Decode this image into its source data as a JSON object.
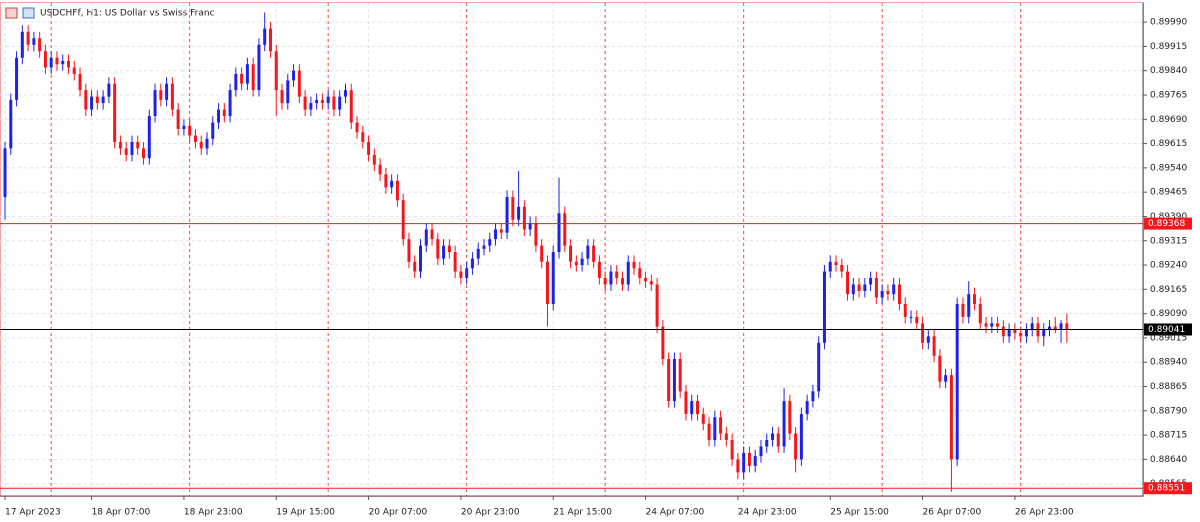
{
  "chart_data": {
    "type": "candlestick",
    "title": "USDCHFf, H1:  US Dollar vs Swiss Franc",
    "up_color": "#1e22e6",
    "down_color": "#f5161c",
    "ylim": [
      0.88527,
      0.90049
    ],
    "yticks": [
      {
        "value": 0.8999,
        "label": "0.89990"
      },
      0.89915,
      {
        "value": 0.8984,
        "label": "0.89840"
      },
      0.89765,
      {
        "value": 0.8969,
        "label": "0.89690"
      },
      0.89615,
      {
        "value": 0.8954,
        "label": "0.89540"
      },
      0.89465,
      {
        "value": 0.8939,
        "label": "0.89390"
      },
      0.89315,
      {
        "value": 0.8924,
        "label": "0.89240"
      },
      0.89165,
      {
        "value": 0.8909,
        "label": "0.89090"
      },
      0.89015,
      {
        "value": 0.8894,
        "label": "0.88940"
      },
      0.88865,
      {
        "value": 0.8879,
        "label": "0.88790"
      },
      0.88715,
      {
        "value": 0.8864,
        "label": "0.88640"
      },
      0.88565
    ],
    "xlim": [
      -0.87,
      197.2
    ],
    "xticks": [
      {
        "value": 0,
        "label": "17 Apr 2023"
      },
      {
        "value": 15,
        "label": "18 Apr 07:00"
      },
      {
        "value": 31,
        "label": "18 Apr 23:00"
      },
      {
        "value": 47,
        "label": "19 Apr 15:00"
      },
      {
        "value": 63,
        "label": "20 Apr 07:00"
      },
      {
        "value": 79,
        "label": "20 Apr 23:00"
      },
      {
        "value": 95,
        "label": "21 Apr 15:00"
      },
      {
        "value": 111,
        "label": "24 Apr 07:00"
      },
      {
        "value": 127,
        "label": "24 Apr 23:00"
      },
      {
        "value": 143,
        "label": "25 Apr 15:00"
      },
      {
        "value": 159,
        "label": "26 Apr 07:00"
      },
      {
        "value": 175,
        "label": "26 Apr 23:00"
      }
    ],
    "period_separators": [
      8,
      32,
      56,
      80,
      104,
      128,
      152,
      176
    ],
    "grid": true,
    "levels": [
      {
        "value": 0.89368,
        "color": "#f5161c"
      },
      {
        "value": 0.89041,
        "color": "#000000"
      },
      {
        "value": 0.88551,
        "color": "#f5161c"
      }
    ],
    "candles": [
      [
        0.8945,
        0.8962,
        0.8938,
        0.896
      ],
      [
        0.896,
        0.8977,
        0.8958,
        0.8975
      ],
      [
        0.8975,
        0.899,
        0.8973,
        0.8988
      ],
      [
        0.8988,
        0.8998,
        0.8986,
        0.8996
      ],
      [
        0.8996,
        0.8998,
        0.899,
        0.8992
      ],
      [
        0.8992,
        0.8996,
        0.899,
        0.8994
      ],
      [
        0.8994,
        0.8996,
        0.8988,
        0.899
      ],
      [
        0.899,
        0.8992,
        0.8983,
        0.8985
      ],
      [
        0.8985,
        0.899,
        0.8983,
        0.8988
      ],
      [
        0.8988,
        0.899,
        0.8984,
        0.8986
      ],
      [
        0.8986,
        0.8989,
        0.8984,
        0.8987
      ],
      [
        0.8987,
        0.8989,
        0.8983,
        0.8985
      ],
      [
        0.8985,
        0.8987,
        0.8981,
        0.8983
      ],
      [
        0.8983,
        0.8985,
        0.8976,
        0.8978
      ],
      [
        0.8978,
        0.898,
        0.897,
        0.8972
      ],
      [
        0.8972,
        0.8978,
        0.897,
        0.8976
      ],
      [
        0.8976,
        0.8978,
        0.8972,
        0.8974
      ],
      [
        0.8974,
        0.8978,
        0.8972,
        0.8976
      ],
      [
        0.8976,
        0.8982,
        0.8974,
        0.898
      ],
      [
        0.898,
        0.8982,
        0.896,
        0.8962
      ],
      [
        0.8962,
        0.8964,
        0.8958,
        0.896
      ],
      [
        0.896,
        0.8962,
        0.8956,
        0.8958
      ],
      [
        0.8958,
        0.8964,
        0.8956,
        0.8962
      ],
      [
        0.8962,
        0.8964,
        0.8958,
        0.896
      ],
      [
        0.896,
        0.8962,
        0.8955,
        0.8957
      ],
      [
        0.8957,
        0.8972,
        0.8955,
        0.897
      ],
      [
        0.897,
        0.898,
        0.8968,
        0.8978
      ],
      [
        0.8978,
        0.898,
        0.8973,
        0.8975
      ],
      [
        0.8975,
        0.8982,
        0.8973,
        0.898
      ],
      [
        0.898,
        0.8982,
        0.897,
        0.8972
      ],
      [
        0.8972,
        0.8974,
        0.8964,
        0.8966
      ],
      [
        0.8966,
        0.8969,
        0.8964,
        0.8967
      ],
      [
        0.8967,
        0.8969,
        0.8962,
        0.8964
      ],
      [
        0.8964,
        0.8966,
        0.896,
        0.8962
      ],
      [
        0.8962,
        0.8964,
        0.8958,
        0.896
      ],
      [
        0.896,
        0.8965,
        0.8958,
        0.8963
      ],
      [
        0.8963,
        0.897,
        0.8961,
        0.8968
      ],
      [
        0.8968,
        0.8974,
        0.8966,
        0.8972
      ],
      [
        0.8972,
        0.8974,
        0.8968,
        0.897
      ],
      [
        0.897,
        0.898,
        0.8968,
        0.8978
      ],
      [
        0.8978,
        0.8985,
        0.8976,
        0.8983
      ],
      [
        0.8983,
        0.8985,
        0.8978,
        0.898
      ],
      [
        0.898,
        0.8988,
        0.8978,
        0.8986
      ],
      [
        0.8986,
        0.8988,
        0.8976,
        0.8978
      ],
      [
        0.8978,
        0.8994,
        0.8976,
        0.8992
      ],
      [
        0.8992,
        0.9002,
        0.899,
        0.8997
      ],
      [
        0.8997,
        0.8999,
        0.8988,
        0.899
      ],
      [
        0.899,
        0.8992,
        0.897,
        0.8978
      ],
      [
        0.8978,
        0.898,
        0.8972,
        0.8974
      ],
      [
        0.8974,
        0.8983,
        0.8972,
        0.8981
      ],
      [
        0.8981,
        0.8986,
        0.8979,
        0.8984
      ],
      [
        0.8984,
        0.8986,
        0.8974,
        0.8976
      ],
      [
        0.8976,
        0.8978,
        0.897,
        0.8972
      ],
      [
        0.8972,
        0.8976,
        0.897,
        0.8974
      ],
      [
        0.8974,
        0.8977,
        0.8972,
        0.8975
      ],
      [
        0.8975,
        0.8977,
        0.8972,
        0.8974
      ],
      [
        0.8974,
        0.8978,
        0.8972,
        0.8976
      ],
      [
        0.8976,
        0.8978,
        0.897,
        0.8972
      ],
      [
        0.8972,
        0.8978,
        0.897,
        0.8976
      ],
      [
        0.8976,
        0.898,
        0.8974,
        0.8978
      ],
      [
        0.8978,
        0.898,
        0.8966,
        0.8968
      ],
      [
        0.8968,
        0.897,
        0.8963,
        0.8965
      ],
      [
        0.8965,
        0.8967,
        0.896,
        0.8962
      ],
      [
        0.8962,
        0.8964,
        0.8956,
        0.8958
      ],
      [
        0.8958,
        0.896,
        0.8953,
        0.8955
      ],
      [
        0.8955,
        0.8957,
        0.895,
        0.8952
      ],
      [
        0.8952,
        0.8954,
        0.8946,
        0.8948
      ],
      [
        0.8948,
        0.8952,
        0.8946,
        0.895
      ],
      [
        0.895,
        0.8952,
        0.8942,
        0.8944
      ],
      [
        0.8944,
        0.8946,
        0.893,
        0.8932
      ],
      [
        0.8932,
        0.8934,
        0.8923,
        0.8925
      ],
      [
        0.8925,
        0.8927,
        0.892,
        0.8922
      ],
      [
        0.8922,
        0.8932,
        0.892,
        0.893
      ],
      [
        0.893,
        0.8937,
        0.8928,
        0.8935
      ],
      [
        0.8935,
        0.8937,
        0.893,
        0.8932
      ],
      [
        0.8932,
        0.8934,
        0.8924,
        0.8926
      ],
      [
        0.8926,
        0.8932,
        0.8924,
        0.893
      ],
      [
        0.893,
        0.8932,
        0.8926,
        0.8928
      ],
      [
        0.8928,
        0.893,
        0.892,
        0.8922
      ],
      [
        0.8922,
        0.8924,
        0.8918,
        0.892
      ],
      [
        0.892,
        0.8925,
        0.8918,
        0.8923
      ],
      [
        0.8923,
        0.8928,
        0.8921,
        0.8926
      ],
      [
        0.8926,
        0.8931,
        0.8924,
        0.8929
      ],
      [
        0.8929,
        0.8932,
        0.8927,
        0.893
      ],
      [
        0.893,
        0.8934,
        0.8928,
        0.8932
      ],
      [
        0.8932,
        0.8937,
        0.893,
        0.8935
      ],
      [
        0.8935,
        0.8937,
        0.8932,
        0.8934
      ],
      [
        0.8934,
        0.8947,
        0.8932,
        0.8945
      ],
      [
        0.8945,
        0.8947,
        0.8936,
        0.8938
      ],
      [
        0.8938,
        0.8953,
        0.8936,
        0.8942
      ],
      [
        0.8942,
        0.8944,
        0.8933,
        0.8935
      ],
      [
        0.8935,
        0.8939,
        0.8933,
        0.8937
      ],
      [
        0.8937,
        0.8939,
        0.8928,
        0.893
      ],
      [
        0.893,
        0.8932,
        0.8923,
        0.8925
      ],
      [
        0.8925,
        0.8927,
        0.8905,
        0.8912
      ],
      [
        0.8912,
        0.893,
        0.891,
        0.8928
      ],
      [
        0.8928,
        0.8951,
        0.8926,
        0.894
      ],
      [
        0.894,
        0.8942,
        0.8928,
        0.893
      ],
      [
        0.893,
        0.8932,
        0.8923,
        0.8925
      ],
      [
        0.8925,
        0.8927,
        0.8922,
        0.8924
      ],
      [
        0.8924,
        0.8928,
        0.8922,
        0.8926
      ],
      [
        0.8926,
        0.8932,
        0.8924,
        0.893
      ],
      [
        0.893,
        0.8932,
        0.8923,
        0.8925
      ],
      [
        0.8925,
        0.8927,
        0.8918,
        0.892
      ],
      [
        0.892,
        0.8922,
        0.8916,
        0.8918
      ],
      [
        0.8918,
        0.8924,
        0.8916,
        0.8922
      ],
      [
        0.8922,
        0.8924,
        0.8918,
        0.892
      ],
      [
        0.892,
        0.8922,
        0.8916,
        0.8918
      ],
      [
        0.8918,
        0.8927,
        0.8916,
        0.8925
      ],
      [
        0.8925,
        0.8927,
        0.8921,
        0.8923
      ],
      [
        0.8923,
        0.8925,
        0.8918,
        0.892
      ],
      [
        0.892,
        0.8922,
        0.8917,
        0.8919
      ],
      [
        0.8919,
        0.8921,
        0.8916,
        0.8918
      ],
      [
        0.8918,
        0.892,
        0.8903,
        0.8905
      ],
      [
        0.8905,
        0.8907,
        0.8893,
        0.8895
      ],
      [
        0.8895,
        0.8897,
        0.888,
        0.8882
      ],
      [
        0.8882,
        0.8897,
        0.888,
        0.8895
      ],
      [
        0.8895,
        0.8897,
        0.8883,
        0.8885
      ],
      [
        0.8885,
        0.8887,
        0.8876,
        0.8878
      ],
      [
        0.8878,
        0.8884,
        0.8876,
        0.8882
      ],
      [
        0.8882,
        0.8884,
        0.8876,
        0.8878
      ],
      [
        0.8878,
        0.888,
        0.8873,
        0.8875
      ],
      [
        0.8875,
        0.8877,
        0.8868,
        0.887
      ],
      [
        0.887,
        0.8879,
        0.8868,
        0.8877
      ],
      [
        0.8877,
        0.8879,
        0.887,
        0.8872
      ],
      [
        0.8872,
        0.8874,
        0.8868,
        0.887
      ],
      [
        0.887,
        0.8872,
        0.8862,
        0.8864
      ],
      [
        0.8864,
        0.8866,
        0.8858,
        0.886
      ],
      [
        0.886,
        0.8868,
        0.8858,
        0.8866
      ],
      [
        0.8866,
        0.8868,
        0.886,
        0.8862
      ],
      [
        0.8862,
        0.8867,
        0.886,
        0.8865
      ],
      [
        0.8865,
        0.887,
        0.8863,
        0.8868
      ],
      [
        0.8868,
        0.8872,
        0.8866,
        0.887
      ],
      [
        0.887,
        0.8874,
        0.8868,
        0.8872
      ],
      [
        0.8872,
        0.8874,
        0.8866,
        0.8868
      ],
      [
        0.8868,
        0.8886,
        0.8866,
        0.8882
      ],
      [
        0.8882,
        0.8884,
        0.887,
        0.8872
      ],
      [
        0.8872,
        0.8874,
        0.886,
        0.8864
      ],
      [
        0.8864,
        0.888,
        0.8862,
        0.8878
      ],
      [
        0.8878,
        0.8884,
        0.8876,
        0.8882
      ],
      [
        0.8882,
        0.8887,
        0.888,
        0.8885
      ],
      [
        0.8885,
        0.8902,
        0.8883,
        0.89
      ],
      [
        0.89,
        0.8924,
        0.8898,
        0.8922
      ],
      [
        0.8922,
        0.8927,
        0.892,
        0.8925
      ],
      [
        0.8925,
        0.8927,
        0.8922,
        0.8924
      ],
      [
        0.8924,
        0.8926,
        0.892,
        0.8922
      ],
      [
        0.8922,
        0.8924,
        0.8913,
        0.8915
      ],
      [
        0.8915,
        0.892,
        0.8913,
        0.8918
      ],
      [
        0.8918,
        0.892,
        0.8914,
        0.8916
      ],
      [
        0.8916,
        0.892,
        0.8914,
        0.8918
      ],
      [
        0.8918,
        0.8922,
        0.8916,
        0.892
      ],
      [
        0.892,
        0.8922,
        0.8912,
        0.8914
      ],
      [
        0.8914,
        0.8918,
        0.8912,
        0.8916
      ],
      [
        0.8916,
        0.8918,
        0.8913,
        0.8915
      ],
      [
        0.8915,
        0.892,
        0.8913,
        0.8918
      ],
      [
        0.8918,
        0.892,
        0.891,
        0.8912
      ],
      [
        0.8912,
        0.8914,
        0.8906,
        0.8908
      ],
      [
        0.8908,
        0.891,
        0.8906,
        0.8908
      ],
      [
        0.8908,
        0.891,
        0.8904,
        0.8906
      ],
      [
        0.8906,
        0.8908,
        0.8898,
        0.89
      ],
      [
        0.89,
        0.8904,
        0.8898,
        0.8902
      ],
      [
        0.8902,
        0.8904,
        0.8894,
        0.8896
      ],
      [
        0.8896,
        0.8898,
        0.8886,
        0.8888
      ],
      [
        0.8888,
        0.8892,
        0.8886,
        0.889
      ],
      [
        0.889,
        0.8892,
        0.8854,
        0.8864
      ],
      [
        0.8864,
        0.8914,
        0.8862,
        0.8912
      ],
      [
        0.8912,
        0.8914,
        0.8906,
        0.8908
      ],
      [
        0.8908,
        0.8919,
        0.8906,
        0.8915
      ],
      [
        0.8915,
        0.8917,
        0.891,
        0.8912
      ],
      [
        0.8912,
        0.8914,
        0.8904,
        0.8906
      ],
      [
        0.8906,
        0.8908,
        0.8903,
        0.8905
      ],
      [
        0.8905,
        0.8908,
        0.8903,
        0.8906
      ],
      [
        0.8906,
        0.8908,
        0.8903,
        0.8905
      ],
      [
        0.8905,
        0.8907,
        0.89,
        0.8902
      ],
      [
        0.8902,
        0.8906,
        0.89,
        0.8904
      ],
      [
        0.8904,
        0.8906,
        0.8901,
        0.8903
      ],
      [
        0.8903,
        0.8905,
        0.89,
        0.8902
      ],
      [
        0.8902,
        0.8906,
        0.89,
        0.8904
      ],
      [
        0.8904,
        0.8908,
        0.8902,
        0.8906
      ],
      [
        0.8906,
        0.8908,
        0.89,
        0.8902
      ],
      [
        0.8902,
        0.8906,
        0.8899,
        0.8904
      ],
      [
        0.8904,
        0.8907,
        0.8902,
        0.8905
      ],
      [
        0.8905,
        0.8908,
        0.8903,
        0.8904
      ],
      [
        0.8904,
        0.8907,
        0.89,
        0.8906
      ],
      [
        0.8906,
        0.8909,
        0.89,
        0.8904
      ]
    ]
  }
}
